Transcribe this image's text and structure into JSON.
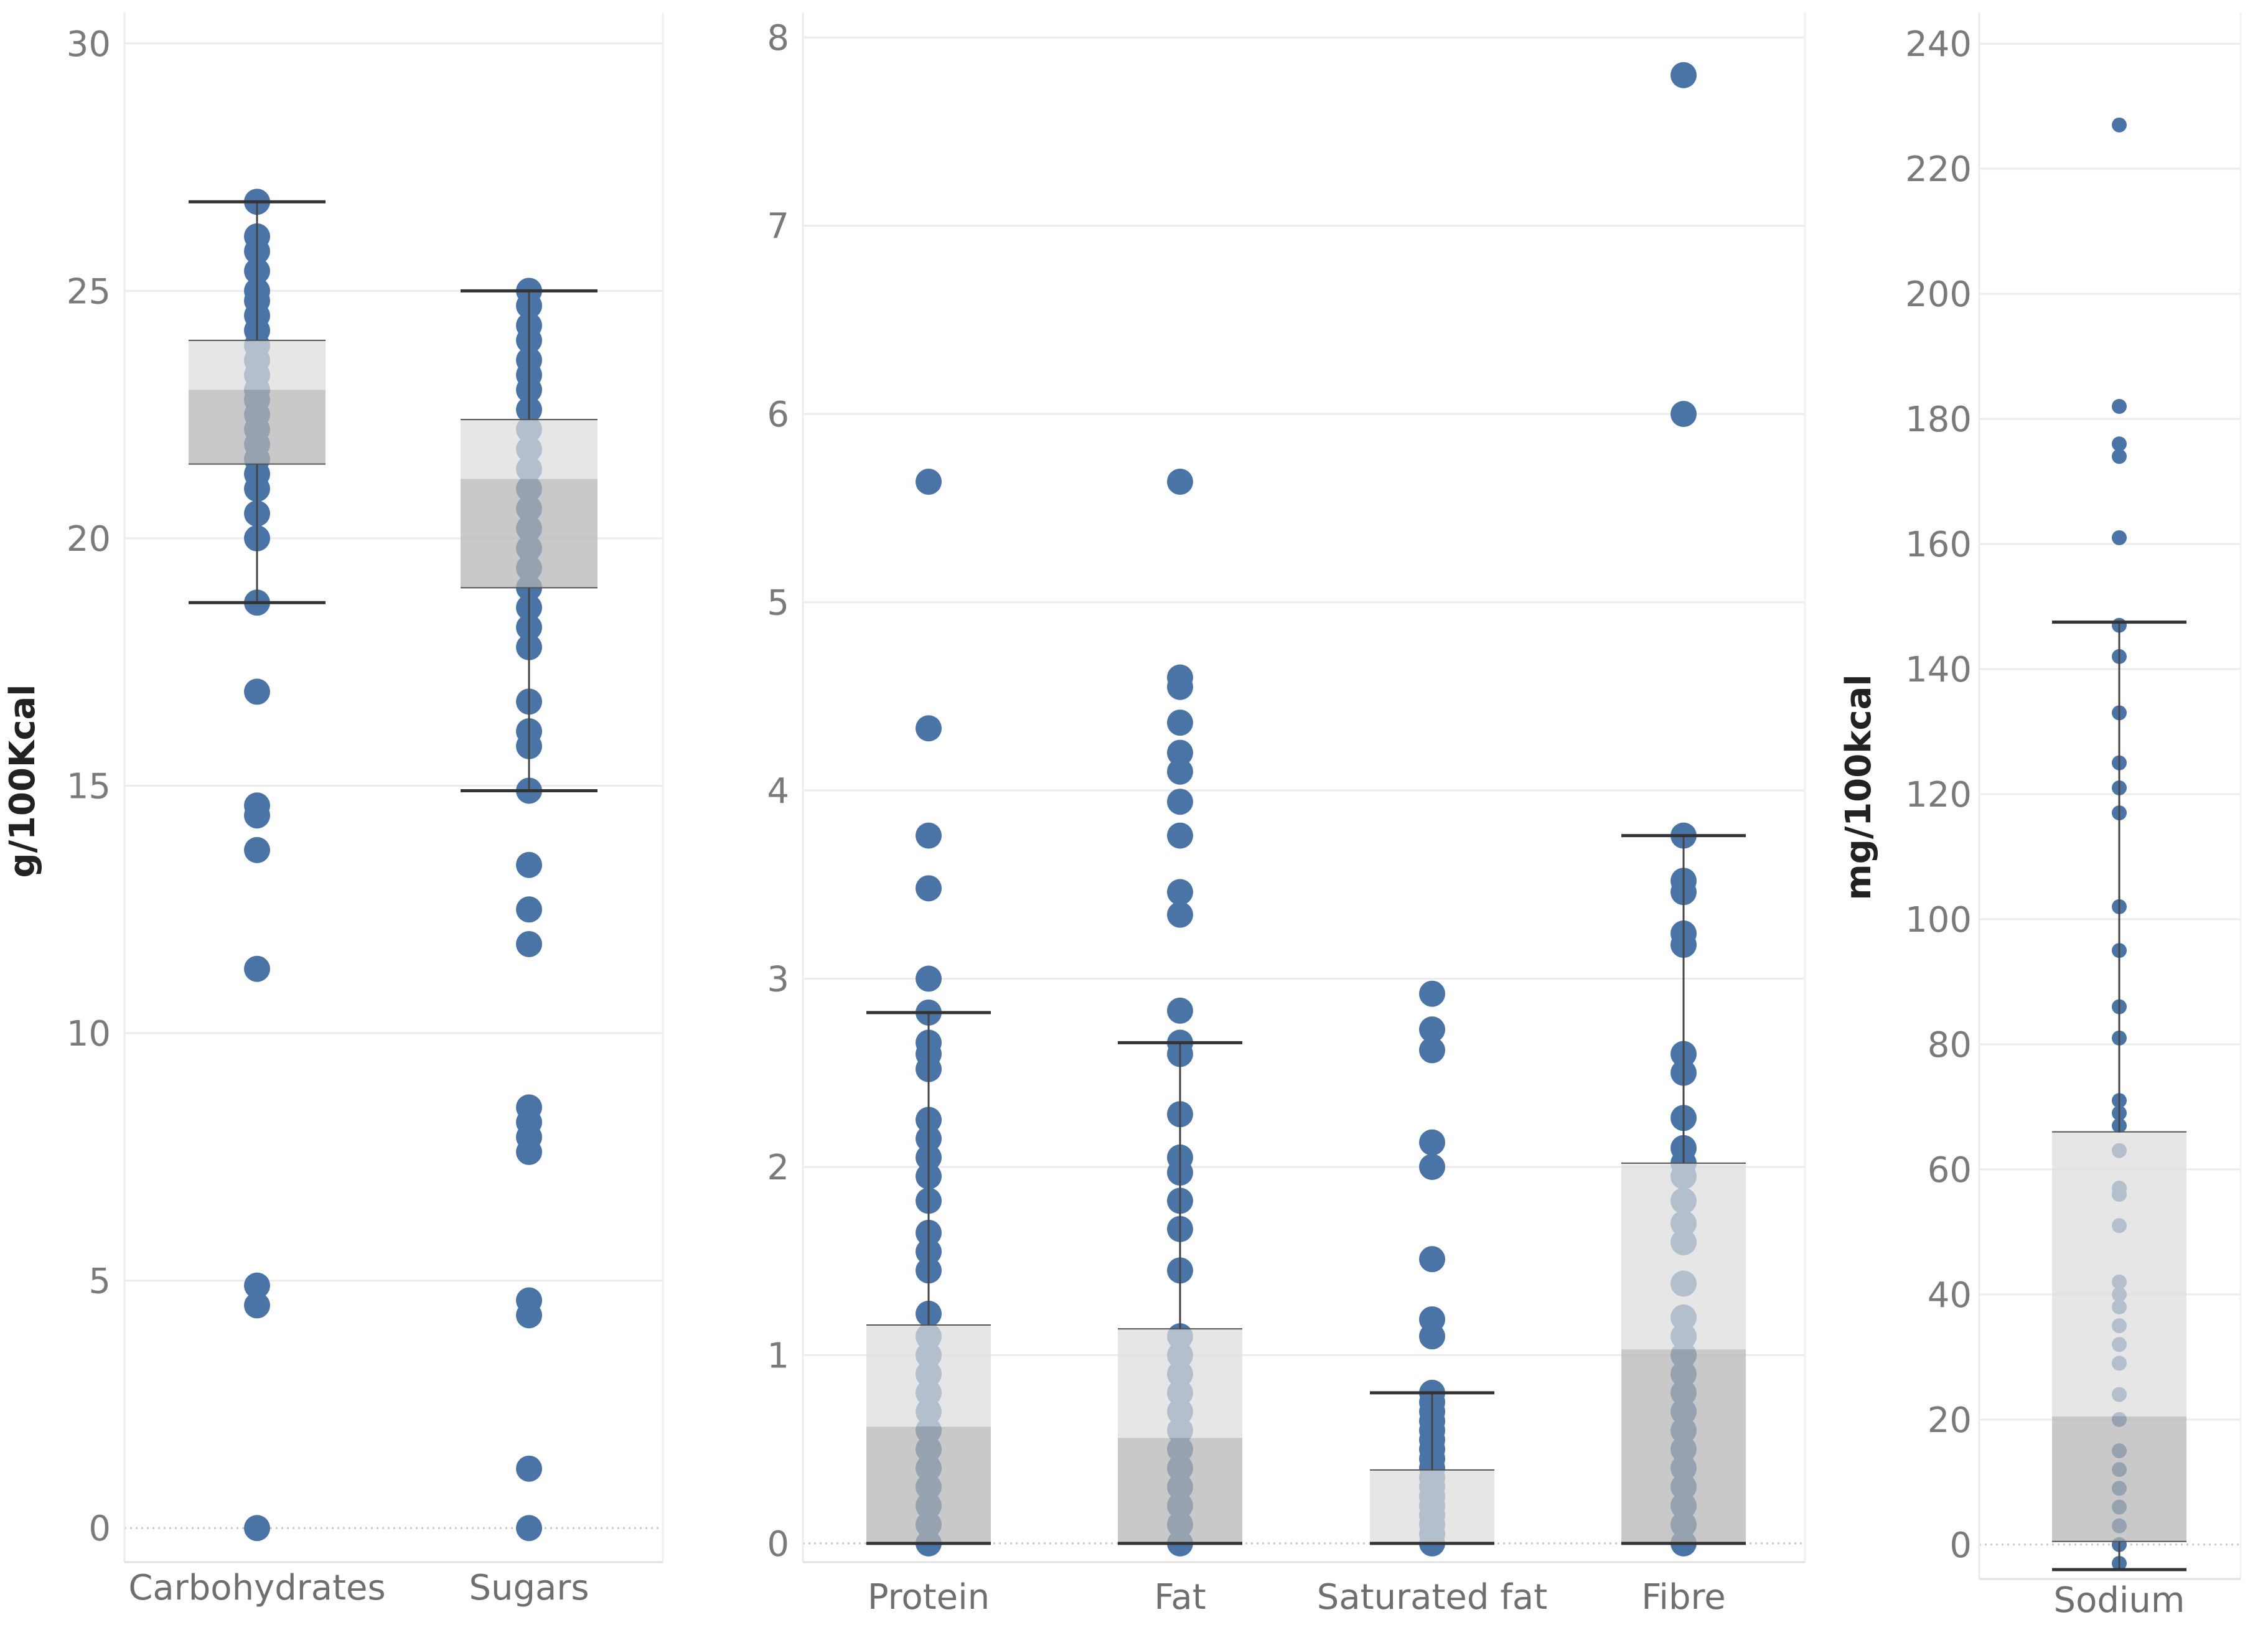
{
  "colors": {
    "point": "#4a73a6",
    "box_upper": "#dcdcdc",
    "box_lower": "#b4b4b4",
    "whisker": "#333333",
    "grid": "#ececec",
    "axis_text": "#7a7a7a"
  },
  "chart_data": [
    {
      "type": "box_dot",
      "ylabel": "g/100Kcal",
      "ylim": [
        -0.5,
        30.5
      ],
      "yticks": [
        0,
        5,
        10,
        15,
        20,
        25,
        30
      ],
      "grid": true,
      "categories": [
        "Carbohydrates",
        "Sugars"
      ],
      "series": [
        {
          "name": "Carbohydrates",
          "whisker_low": 18.7,
          "q1": 21.5,
          "median": 23.0,
          "q3": 24.0,
          "whisker_high": 26.8,
          "values": [
            0,
            4.5,
            4.9,
            11.3,
            13.7,
            14.4,
            14.6,
            16.9,
            18.7,
            20.0,
            20.5,
            21.0,
            21.3,
            21.6,
            21.9,
            22.2,
            22.5,
            22.8,
            23.0,
            23.3,
            23.6,
            23.9,
            24.2,
            24.5,
            24.8,
            25.0,
            25.4,
            25.8,
            26.1,
            26.8
          ]
        },
        {
          "name": "Sugars",
          "whisker_low": 14.9,
          "q1": 19.0,
          "median": 21.2,
          "q3": 22.4,
          "whisker_high": 25.0,
          "values": [
            0,
            1.2,
            4.3,
            4.6,
            7.6,
            7.9,
            8.2,
            8.5,
            11.8,
            12.5,
            13.4,
            14.9,
            15.8,
            16.1,
            16.7,
            17.8,
            18.2,
            18.6,
            19.0,
            19.4,
            19.8,
            20.2,
            20.6,
            21.0,
            21.4,
            21.8,
            22.2,
            22.6,
            23.0,
            23.3,
            23.6,
            24.0,
            24.3,
            24.7,
            25.0
          ]
        }
      ]
    },
    {
      "type": "box_dot",
      "ylabel": "",
      "ylim": [
        -0.05,
        8.1
      ],
      "yticks": [
        0,
        1,
        2,
        3,
        4,
        5,
        6,
        7,
        8
      ],
      "grid": true,
      "categories": [
        "Protein",
        "Fat",
        "Saturated fat",
        "Fibre"
      ],
      "series": [
        {
          "name": "Protein",
          "whisker_low": 0,
          "q1": 0,
          "median": 0.62,
          "q3": 1.16,
          "whisker_high": 2.82,
          "values": [
            0,
            0.1,
            0.2,
            0.3,
            0.4,
            0.5,
            0.6,
            0.7,
            0.8,
            0.9,
            1.0,
            1.1,
            1.22,
            1.45,
            1.55,
            1.65,
            1.82,
            1.95,
            2.05,
            2.15,
            2.25,
            2.52,
            2.6,
            2.66,
            2.82,
            3.0,
            3.48,
            3.76,
            4.33,
            5.64
          ]
        },
        {
          "name": "Fat",
          "whisker_low": 0,
          "q1": 0,
          "median": 0.56,
          "q3": 1.14,
          "whisker_high": 2.66,
          "values": [
            0,
            0.1,
            0.2,
            0.3,
            0.4,
            0.5,
            0.6,
            0.7,
            0.8,
            0.9,
            1.0,
            1.1,
            1.45,
            1.67,
            1.82,
            1.97,
            2.05,
            2.28,
            2.6,
            2.66,
            2.83,
            3.34,
            3.46,
            3.76,
            3.94,
            4.1,
            4.2,
            4.36,
            4.55,
            4.6,
            5.64
          ]
        },
        {
          "name": "Saturated fat",
          "whisker_low": 0,
          "q1": 0,
          "median": 0,
          "q3": 0.39,
          "whisker_high": 0.8,
          "values": [
            0,
            0.05,
            0.1,
            0.15,
            0.2,
            0.25,
            0.3,
            0.35,
            0.4,
            0.45,
            0.5,
            0.55,
            0.6,
            0.65,
            0.7,
            0.75,
            0.8,
            1.1,
            1.19,
            1.51,
            2.0,
            2.13,
            2.62,
            2.73,
            2.92
          ]
        },
        {
          "name": "Fibre",
          "whisker_low": 0,
          "q1": 0,
          "median": 1.03,
          "q3": 2.02,
          "whisker_high": 3.76,
          "values": [
            0,
            0.1,
            0.2,
            0.3,
            0.4,
            0.5,
            0.6,
            0.7,
            0.8,
            0.9,
            1.0,
            1.1,
            1.2,
            1.38,
            1.6,
            1.7,
            1.82,
            1.95,
            2.02,
            2.1,
            2.26,
            2.5,
            2.6,
            3.18,
            3.24,
            3.46,
            3.52,
            3.76,
            6.0,
            7.8
          ]
        }
      ]
    },
    {
      "type": "box_dot",
      "ylabel": "mg/100kcal",
      "ylim": [
        -4,
        244
      ],
      "yticks": [
        0,
        20,
        40,
        60,
        80,
        100,
        120,
        140,
        160,
        180,
        200,
        220,
        240
      ],
      "grid": true,
      "categories": [
        "Sodium"
      ],
      "series": [
        {
          "name": "Sodium",
          "whisker_low": -4,
          "q1": 0.5,
          "median": 20.5,
          "q3": 66,
          "whisker_high": 147.5,
          "values": [
            -3,
            0,
            3,
            6,
            9,
            12,
            15,
            20,
            24,
            29,
            32,
            35,
            38,
            40,
            42,
            51,
            56,
            57,
            63,
            67,
            69,
            71,
            81,
            86,
            95,
            102,
            117,
            121,
            125,
            133,
            142,
            147,
            161,
            174,
            176,
            182,
            227
          ]
        }
      ]
    }
  ]
}
